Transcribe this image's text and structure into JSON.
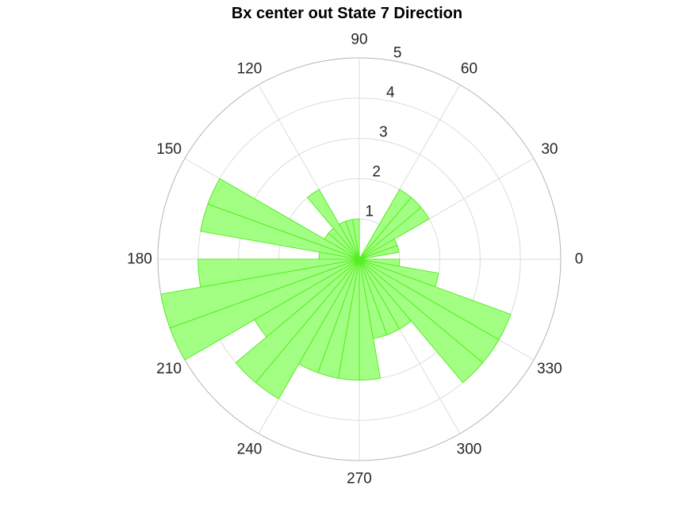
{
  "chart_data": {
    "type": "polar-histogram",
    "title": "Bx  center out State 7 Direction",
    "theta_unit": "degrees",
    "bin_width_deg": 10,
    "bin_centers_deg": [
      5,
      15,
      25,
      35,
      45,
      55,
      65,
      75,
      85,
      95,
      105,
      115,
      125,
      135,
      145,
      155,
      165,
      175,
      185,
      195,
      205,
      215,
      225,
      235,
      245,
      255,
      265,
      275,
      285,
      295,
      305,
      315,
      325,
      335,
      345,
      355
    ],
    "values": [
      0,
      1,
      1,
      2,
      2,
      2,
      0,
      0,
      0,
      1,
      1,
      1,
      2,
      1,
      1,
      4,
      4,
      1,
      4,
      5,
      5,
      3,
      4,
      4,
      3,
      3,
      3,
      3,
      2,
      2,
      2,
      4,
      4,
      4,
      2,
      1
    ],
    "r_ticks": [
      "1",
      "2",
      "3",
      "4",
      "5"
    ],
    "rlim": [
      0,
      5
    ],
    "theta_ticks": [
      "0",
      "30",
      "60",
      "90",
      "120",
      "150",
      "180",
      "210",
      "240",
      "270",
      "300",
      "330"
    ],
    "grid": true,
    "colors": {
      "fill": "#99ff77",
      "edge": "#55ee22",
      "grid": "#dcdcdc",
      "outer": "#b4b4b4"
    }
  }
}
